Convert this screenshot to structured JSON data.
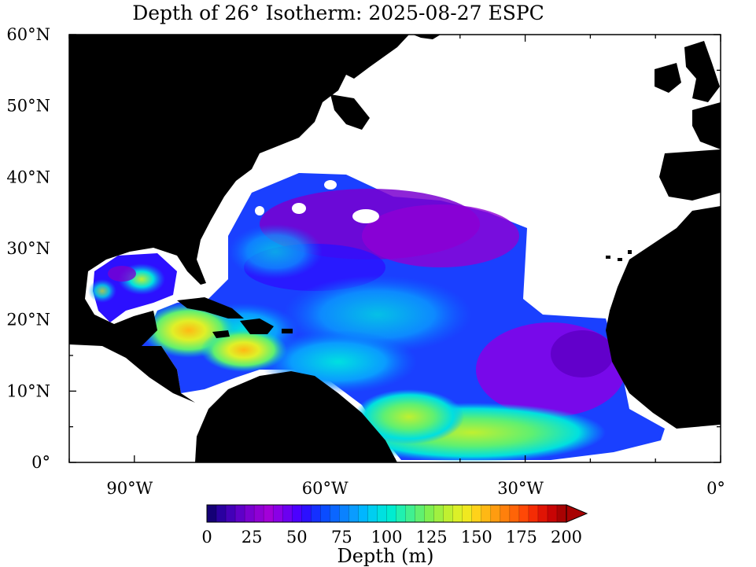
{
  "title": "Depth of 26° Isotherm: 2025-08-27 ESPC",
  "map": {
    "lat_labels": [
      "60°N",
      "50°N",
      "40°N",
      "30°N",
      "20°N",
      "10°N",
      "0°"
    ],
    "lon_labels": [
      "90°W",
      "60°W",
      "30°W",
      "0°"
    ],
    "extent": {
      "lon_min": -100,
      "lon_max": 0,
      "lat_min": 0,
      "lat_max": 60
    },
    "land_color": "#000000",
    "ocean_nodata_color": "#ffffff"
  },
  "colorbar": {
    "title": "Depth (m)",
    "tick_labels": [
      "0",
      "25",
      "50",
      "75",
      "100",
      "125",
      "150",
      "175",
      "200"
    ],
    "range": [
      0,
      200
    ],
    "extend": "max",
    "colors": [
      "#140076",
      "#2a00a0",
      "#4300b8",
      "#5f00c8",
      "#7a00d0",
      "#9000d4",
      "#a300d8",
      "#8a00e6",
      "#6c00f0",
      "#4c00ff",
      "#2c10ff",
      "#1530ff",
      "#0a4cff",
      "#0a66ff",
      "#0a82ff",
      "#0a9cff",
      "#00b6ff",
      "#00cef0",
      "#00e0e0",
      "#00ecd0",
      "#20f0b0",
      "#40f090",
      "#60f070",
      "#80f050",
      "#a0f040",
      "#c0f030",
      "#dcf028",
      "#f0e820",
      "#ffd21a",
      "#ffb814",
      "#ff9c10",
      "#ff800c",
      "#ff6408",
      "#ff4806",
      "#f42c04",
      "#e01404",
      "#c80404",
      "#a80202"
    ]
  }
}
